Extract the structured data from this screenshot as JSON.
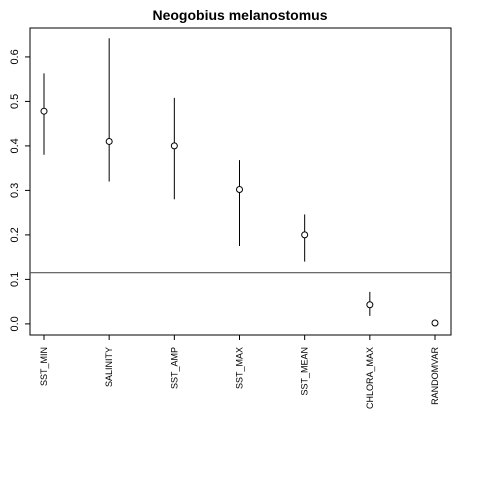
{
  "chart_data": {
    "type": "scatter",
    "title": "Neogobius melanostomus",
    "xlabel": "",
    "ylabel": "",
    "categories": [
      "SST_MIN",
      "SALINITY",
      "SST_AMP",
      "SST_MAX",
      "SST_MEAN",
      "CHLORA_MAX",
      "RANDOMVAR"
    ],
    "points": [
      {
        "category": "SST_MIN",
        "value": 0.478,
        "low": 0.38,
        "high": 0.563
      },
      {
        "category": "SALINITY",
        "value": 0.41,
        "low": 0.32,
        "high": 0.642
      },
      {
        "category": "SST_AMP",
        "value": 0.4,
        "low": 0.28,
        "high": 0.508
      },
      {
        "category": "SST_MAX",
        "value": 0.302,
        "low": 0.175,
        "high": 0.368
      },
      {
        "category": "SST_MEAN",
        "value": 0.2,
        "low": 0.14,
        "high": 0.246
      },
      {
        "category": "CHLORA_MAX",
        "value": 0.043,
        "low": 0.018,
        "high": 0.072
      },
      {
        "category": "RANDOMVAR",
        "value": 0.002,
        "low": null,
        "high": null
      }
    ],
    "reference_line": 0.115,
    "yticks": [
      "0.0",
      "0.1",
      "0.2",
      "0.3",
      "0.4",
      "0.5",
      "0.6"
    ],
    "ylim": [
      -0.025,
      0.665
    ],
    "grid": false,
    "legend": "none",
    "colors": {
      "marks": "#000000",
      "reference_line": "#555555"
    }
  }
}
